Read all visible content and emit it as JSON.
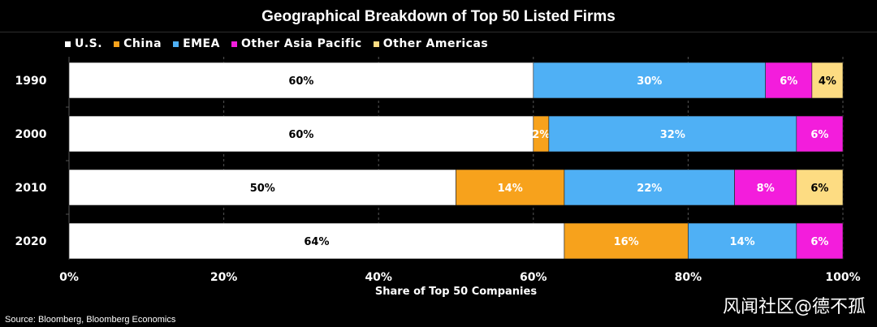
{
  "chart_data": {
    "type": "bar",
    "orientation": "horizontal",
    "stacked": true,
    "title": "Geographical Breakdown of Top 50 Listed Firms",
    "xlabel": "Share of Top 50 Companies",
    "ylabel": "",
    "xlim": [
      0,
      100
    ],
    "x_tick_labels": [
      "0%",
      "20%",
      "40%",
      "60%",
      "80%",
      "100%"
    ],
    "x_ticks": [
      0,
      20,
      40,
      60,
      80,
      100
    ],
    "legend_position": "top-left",
    "categories": [
      "1990",
      "2000",
      "2010",
      "2020"
    ],
    "series": [
      {
        "name": "U.S.",
        "color": "#ffffff",
        "text_color": "#000000",
        "values": [
          60,
          60,
          50,
          64
        ],
        "labels": [
          "60%",
          "60%",
          "50%",
          "64%"
        ]
      },
      {
        "name": "China",
        "color": "#f7a21c",
        "text_color": "#ffffff",
        "values": [
          0,
          2,
          14,
          16
        ],
        "labels": [
          "",
          "2%",
          "14%",
          "16%"
        ]
      },
      {
        "name": "EMEA",
        "color": "#4fb0f5",
        "text_color": "#ffffff",
        "values": [
          30,
          32,
          22,
          14
        ],
        "labels": [
          "30%",
          "32%",
          "22%",
          "14%"
        ]
      },
      {
        "name": "Other Asia Pacific",
        "color": "#f31ddc",
        "text_color": "#ffffff",
        "values": [
          6,
          6,
          8,
          6
        ],
        "labels": [
          "6%",
          "6%",
          "8%",
          "6%"
        ]
      },
      {
        "name": "Other Americas",
        "color": "#fddc82",
        "text_color": "#000000",
        "values": [
          4,
          0,
          6,
          0
        ],
        "labels": [
          "4%",
          "",
          "6%",
          ""
        ]
      }
    ]
  },
  "source": "Source: Bloomberg, Bloomberg Economics",
  "watermark": "风闻社区@德不孤"
}
